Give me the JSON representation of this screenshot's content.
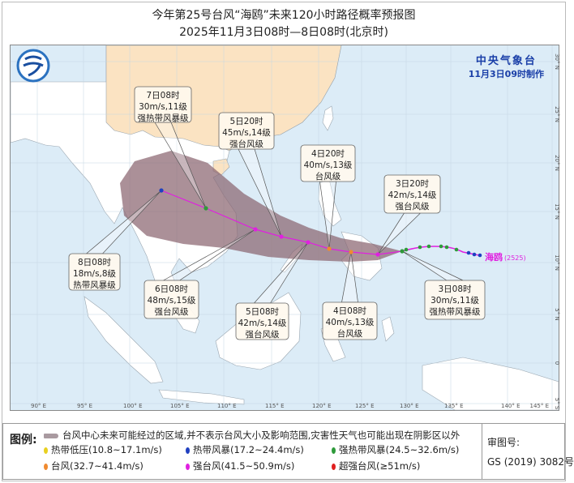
{
  "header": {
    "title": "今年第25号台风“海鸥”未来120小时路径概率预报图",
    "subtitle": "2025年11月3日08时—8日08时(北京时)"
  },
  "issuer": {
    "name": "中央气象台",
    "issued": "11月3日09时制作"
  },
  "map": {
    "lon_ticks": [
      "90° E",
      "95° E",
      "100° E",
      "105° E",
      "110° E",
      "115° E",
      "120° E",
      "125° E",
      "130° E",
      "135° E",
      "140° E",
      "145° E"
    ],
    "lat_ticks": [
      "30° N",
      "25° N",
      "20° N",
      "15° N",
      "10° N",
      "5° N",
      "0",
      "5° S"
    ],
    "typhoon_label": "海鸥",
    "typhoon_code": "(2525)",
    "forecast_points": [
      {
        "time": "3日08时",
        "wind": "30m/s,11级",
        "grade": "强热带风暴级",
        "color": "#2e9a3a"
      },
      {
        "time": "3日20时",
        "wind": "42m/s,14级",
        "grade": "强台风级",
        "color": "#e020e0"
      },
      {
        "time": "4日08时",
        "wind": "40m/s,13级",
        "grade": "台风级",
        "color": "#f08a30"
      },
      {
        "time": "4日20时",
        "wind": "40m/s,13级",
        "grade": "台风级",
        "color": "#f08a30"
      },
      {
        "time": "5日08时",
        "wind": "42m/s,14级",
        "grade": "强台风级",
        "color": "#e020e0"
      },
      {
        "time": "5日20时",
        "wind": "45m/s,14级",
        "grade": "强台风级",
        "color": "#e020e0"
      },
      {
        "time": "6日08时",
        "wind": "48m/s,15级",
        "grade": "强台风级",
        "color": "#e020e0"
      },
      {
        "time": "7日08时",
        "wind": "30m/s,11级",
        "grade": "强热带风暴级",
        "color": "#2e9a3a"
      },
      {
        "time": "8日08时",
        "wind": "18m/s,8级",
        "grade": "热带风暴级",
        "color": "#2040c0"
      }
    ],
    "colors": {
      "sea": "#dcecf7",
      "china": "#fbe3c2",
      "land": "#ffffff",
      "cone": "#8a6570",
      "track": "#e020e0"
    }
  },
  "legend": {
    "label": "图例:",
    "cone_desc": "台风中心未来可能经过的区域,并不表示台风大小及影响范围,灾害性天气也可能出现在阴影区以外",
    "items": [
      {
        "text": "热带低压(10.8~17.1m/s)",
        "color": "#e8d020"
      },
      {
        "text": "热带风暴(17.2~24.4m/s)",
        "color": "#2040c0"
      },
      {
        "text": "强热带风暴(24.5~32.6m/s)",
        "color": "#2e9a3a"
      },
      {
        "text": "台风(32.7~41.4m/s)",
        "color": "#f08a30"
      },
      {
        "text": "强台风(41.5~50.9m/s)",
        "color": "#e020e0"
      },
      {
        "text": "超强台风(≥51m/s)",
        "color": "#e02020"
      }
    ],
    "audit_label": "审图号:",
    "audit_no": "GS (2019) 3082号"
  }
}
